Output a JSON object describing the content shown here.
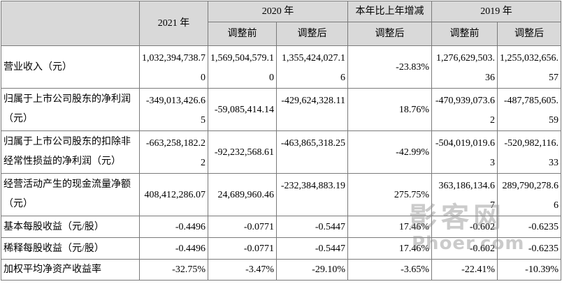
{
  "header": {
    "col_2021": "2021 年",
    "col_2020": "2020 年",
    "col_change": "本年比上年增减",
    "col_2019": "2019 年",
    "sub_before": "调整前",
    "sub_after": "调整后",
    "sub_change_after": "调整后",
    "sub_2019_before": "调整前",
    "sub_2019_after": "调整后"
  },
  "rows": [
    {
      "label": "营业收入（元）",
      "v2021": "1,032,394,738.70",
      "v2020_before": "1,569,504,579.10",
      "v2020_after": "1,355,424,027.16",
      "change": "-23.83%",
      "v2019_before": "1,276,629,503.36",
      "v2019_after": "1,255,032,656.57"
    },
    {
      "label": "归属于上市公司股东的净利润（元）",
      "v2021": "-349,013,426.65",
      "v2020_before": "-59,085,414.14",
      "v2020_after": "-429,624,328.11",
      "change": "18.76%",
      "v2019_before": "-470,939,073.62",
      "v2019_after": "-487,785,605.59"
    },
    {
      "label": "归属于上市公司股东的扣除非经常性损益的净利润（元）",
      "v2021": "-663,258,182.22",
      "v2020_before": "-92,232,568.61",
      "v2020_after": "-463,865,318.25",
      "change": "-42.99%",
      "v2019_before": "-504,019,019.63",
      "v2019_after": "-520,982,116.33"
    },
    {
      "label": "经营活动产生的现金流量净额（元）",
      "v2021": "408,412,286.07",
      "v2020_before": "24,689,960.46",
      "v2020_after": "-232,384,883.19",
      "change": "275.75%",
      "v2019_before": "363,186,134.67",
      "v2019_after": "289,790,278.66"
    },
    {
      "label": "基本每股收益（元/股）",
      "v2021": "-0.4496",
      "v2020_before": "-0.0771",
      "v2020_after": "-0.5447",
      "change": "17.46%",
      "v2019_before": "-0.602",
      "v2019_after": "-0.6235"
    },
    {
      "label": "稀释每股收益（元/股）",
      "v2021": "-0.4496",
      "v2020_before": "-0.0771",
      "v2020_after": "-0.5447",
      "change": "17.46%",
      "v2019_before": "-0.602",
      "v2019_after": "-0.6235"
    },
    {
      "label": "加权平均净资产收益率",
      "v2021": "-32.75%",
      "v2020_before": "-3.47%",
      "v2020_after": "-29.10%",
      "change": "-3.65%",
      "v2019_before": "-22.41%",
      "v2019_after": "-10.39%"
    }
  ],
  "watermark": {
    "chinese": "影客网",
    "latin": "Phoer.com"
  }
}
